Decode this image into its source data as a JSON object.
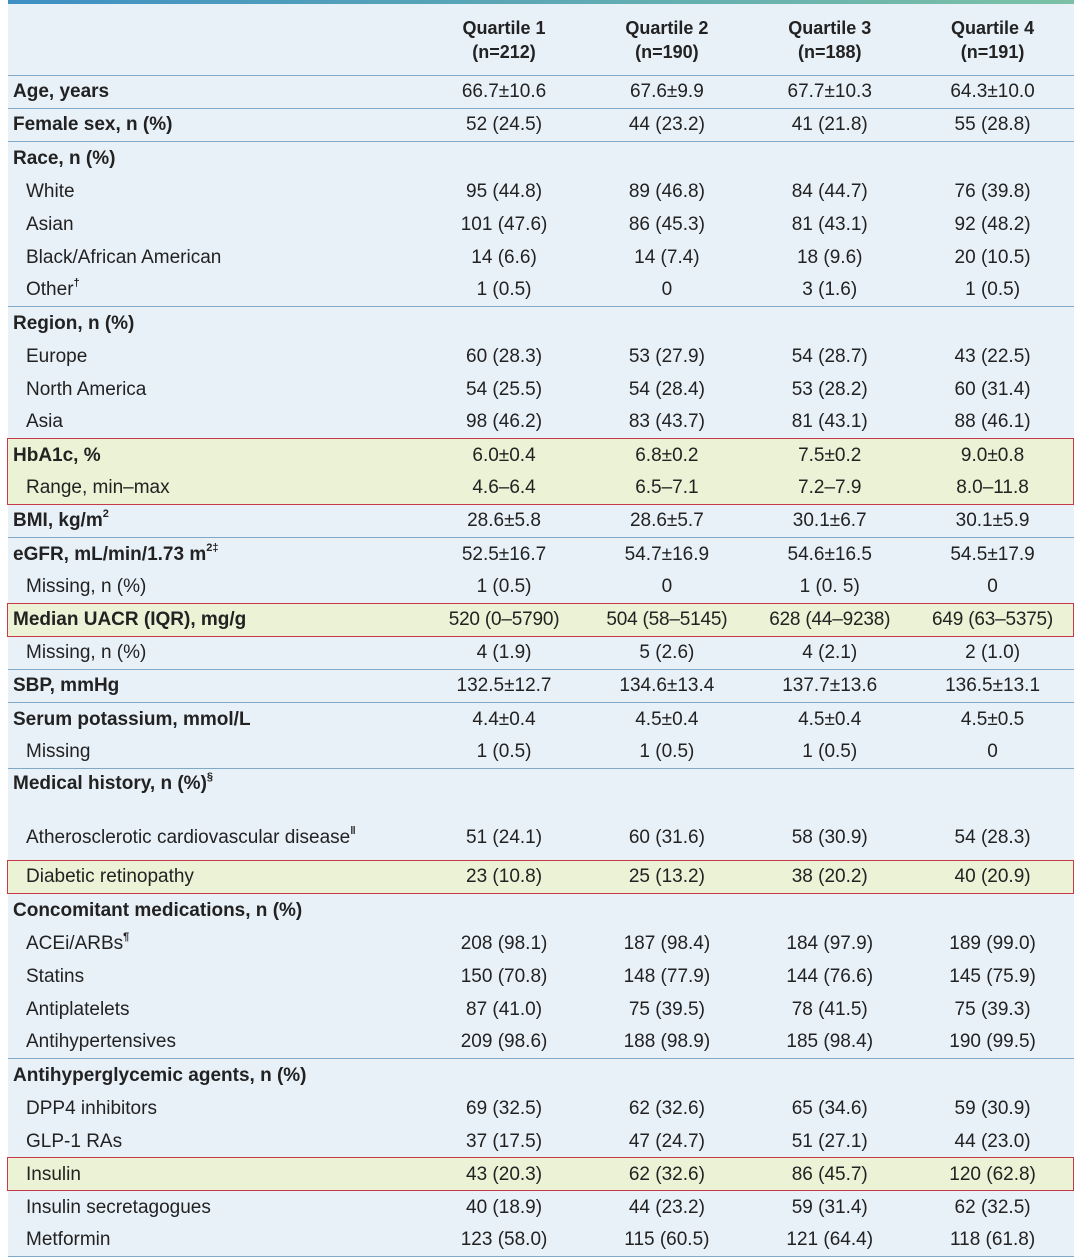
{
  "columns": [
    {
      "name": "Quartile 1",
      "n": "(n=212)"
    },
    {
      "name": "Quartile 2",
      "n": "(n=190)"
    },
    {
      "name": "Quartile 3",
      "n": "(n=188)"
    },
    {
      "name": "Quartile 4",
      "n": "(n=191)"
    }
  ],
  "rows": [
    {
      "label": "Age, years",
      "bold": true,
      "values": [
        "66.7±10.6",
        "67.6±9.9",
        "67.7±10.3",
        "64.3±10.0"
      ]
    },
    {
      "label": "Female sex, n (%)",
      "bold": true,
      "values": [
        "52 (24.5)",
        "44 (23.2)",
        "41 (21.8)",
        "55 (28.8)"
      ]
    },
    {
      "label": "Race, n (%)",
      "bold": true,
      "values": [
        "",
        "",
        "",
        ""
      ]
    },
    {
      "label": "White",
      "values": [
        "95 (44.8)",
        "89 (46.8)",
        "84 (44.7)",
        "76 (39.8)"
      ]
    },
    {
      "label": "Asian",
      "values": [
        "101 (47.6)",
        "86 (45.3)",
        "81 (43.1)",
        "92 (48.2)"
      ]
    },
    {
      "label": "Black/African American",
      "values": [
        "14 (6.6)",
        "14 (7.4)",
        "18 (9.6)",
        "20 (10.5)"
      ]
    },
    {
      "label": "Other",
      "sup": "†",
      "values": [
        "1 (0.5)",
        "0",
        "3 (1.6)",
        "1 (0.5)"
      ]
    },
    {
      "label": "Region, n (%)",
      "bold": true,
      "values": [
        "",
        "",
        "",
        ""
      ]
    },
    {
      "label": "Europe",
      "values": [
        "60 (28.3)",
        "53 (27.9)",
        "54 (28.7)",
        "43 (22.5)"
      ]
    },
    {
      "label": "North America",
      "values": [
        "54 (25.5)",
        "54 (28.4)",
        "53 (28.2)",
        "60 (31.4)"
      ]
    },
    {
      "label": "Asia",
      "values": [
        "98 (46.2)",
        "83 (43.7)",
        "81 (43.1)",
        "88 (46.1)"
      ]
    },
    {
      "label": "HbA1c, %",
      "bold": true,
      "values": [
        "6.0±0.4",
        "6.8±0.2",
        "7.5±0.2",
        "9.0±0.8"
      ]
    },
    {
      "label": "Range, min–max",
      "values": [
        "4.6–6.4",
        "6.5–7.1",
        "7.2–7.9",
        "8.0–11.8"
      ]
    },
    {
      "label": "BMI, kg/m",
      "sup": "2",
      "bold": true,
      "values": [
        "28.6±5.8",
        "28.6±5.7",
        "30.1±6.7",
        "30.1±5.9"
      ]
    },
    {
      "label": "eGFR, mL/min/1.73 m",
      "sup": "2‡",
      "bold": true,
      "values": [
        "52.5±16.7",
        "54.7±16.9",
        "54.6±16.5",
        "54.5±17.9"
      ]
    },
    {
      "label": "Missing, n (%)",
      "values": [
        "1 (0.5)",
        "0",
        "1 (0. 5)",
        "0"
      ]
    },
    {
      "label": "Median UACR (IQR), mg/g",
      "bold": true,
      "values": [
        "520 (0–5790)",
        "504 (58–5145)",
        "628 (44–9238)",
        "649 (63–5375)"
      ]
    },
    {
      "label": "Missing, n (%)",
      "values": [
        "4 (1.9)",
        "5 (2.6)",
        "4 (2.1)",
        "2 (1.0)"
      ]
    },
    {
      "label": "SBP, mmHg",
      "bold": true,
      "values": [
        "132.5±12.7",
        "134.6±13.4",
        "137.7±13.6",
        "136.5±13.1"
      ]
    },
    {
      "label": "Serum potassium, mmol/L",
      "bold": true,
      "values": [
        "4.4±0.4",
        "4.5±0.4",
        "4.5±0.4",
        "4.5±0.5"
      ]
    },
    {
      "label": "Missing",
      "values": [
        "1 (0.5)",
        "1 (0.5)",
        "1 (0.5)",
        "0"
      ]
    },
    {
      "label": "Medical history, n (%)",
      "sup": "§",
      "bold": true,
      "values": [
        "",
        "",
        "",
        ""
      ]
    },
    {
      "label": "Atherosclerotic cardiovascular disease",
      "sup": "‖",
      "values": [
        "51 (24.1)",
        "60 (31.6)",
        "58 (30.9)",
        "54 (28.3)"
      ]
    },
    {
      "label": "Diabetic retinopathy",
      "values": [
        "23 (10.8)",
        "25 (13.2)",
        "38 (20.2)",
        "40 (20.9)"
      ]
    },
    {
      "label": "Concomitant medications, n (%)",
      "bold": true,
      "values": [
        "",
        "",
        "",
        ""
      ]
    },
    {
      "label": "ACEi/ARBs",
      "sup": "¶",
      "values": [
        "208 (98.1)",
        "187 (98.4)",
        "184 (97.9)",
        "189 (99.0)"
      ]
    },
    {
      "label": "Statins",
      "values": [
        "150 (70.8)",
        "148 (77.9)",
        "144 (76.6)",
        "145 (75.9)"
      ]
    },
    {
      "label": "Antiplatelets",
      "values": [
        "87 (41.0)",
        "75 (39.5)",
        "78 (41.5)",
        "75 (39.3)"
      ]
    },
    {
      "label": "Antihypertensives",
      "values": [
        "209 (98.6)",
        "188 (98.9)",
        "185 (98.4)",
        "190 (99.5)"
      ]
    },
    {
      "label": "Antihyperglycemic agents, n (%)",
      "bold": true,
      "values": [
        "",
        "",
        "",
        ""
      ]
    },
    {
      "label": "DPP4 inhibitors",
      "values": [
        "69 (32.5)",
        "62 (32.6)",
        "65 (34.6)",
        "59 (30.9)"
      ]
    },
    {
      "label": "GLP-1 RAs",
      "values": [
        "37 (17.5)",
        "47 (24.7)",
        "51 (27.1)",
        "44 (23.0)"
      ]
    },
    {
      "label": "Insulin",
      "values": [
        "43 (20.3)",
        "62 (32.6)",
        "86 (45.7)",
        "120 (62.8)"
      ]
    },
    {
      "label": "Insulin secretagogues",
      "values": [
        "40 (18.9)",
        "44 (23.2)",
        "59 (31.4)",
        "62 (32.5)"
      ]
    },
    {
      "label": "Metformin",
      "values": [
        "123 (58.0)",
        "115 (60.5)",
        "121 (64.4)",
        "118 (61.8)"
      ]
    }
  ],
  "colors": {
    "table_bg": "#e9f1f8",
    "rule": "#7fa9c8",
    "highlight_fill": "#ebf2d5",
    "highlight_border": "#c53a46"
  }
}
